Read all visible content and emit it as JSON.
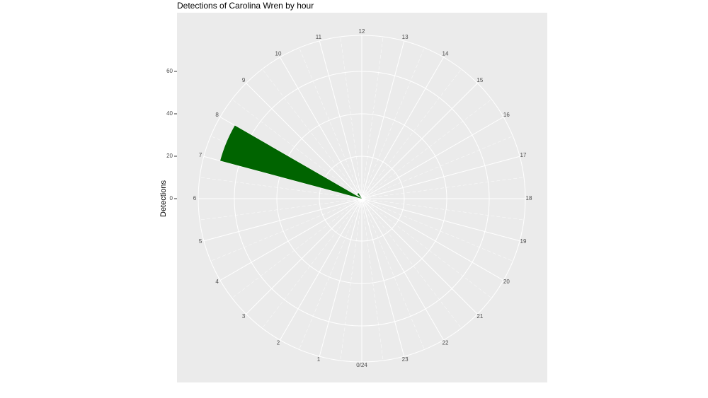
{
  "chart_data": {
    "type": "polar-bar",
    "title": "Detections of Carolina Wren by hour",
    "y_label": "Detections",
    "x": [
      7,
      9
    ],
    "values": [
      69,
      3
    ],
    "color": "#006400",
    "xlim": [
      0,
      24
    ],
    "xticks": [
      {
        "value": 0,
        "label": "0/24"
      },
      1,
      2,
      3,
      4,
      5,
      6,
      7,
      8,
      9,
      10,
      11,
      12,
      13,
      14,
      15,
      16,
      17,
      18,
      19,
      20,
      21,
      22,
      23
    ],
    "ylim": [
      0,
      77
    ],
    "yticks": [
      0,
      20,
      40,
      60
    ],
    "grid": true
  }
}
